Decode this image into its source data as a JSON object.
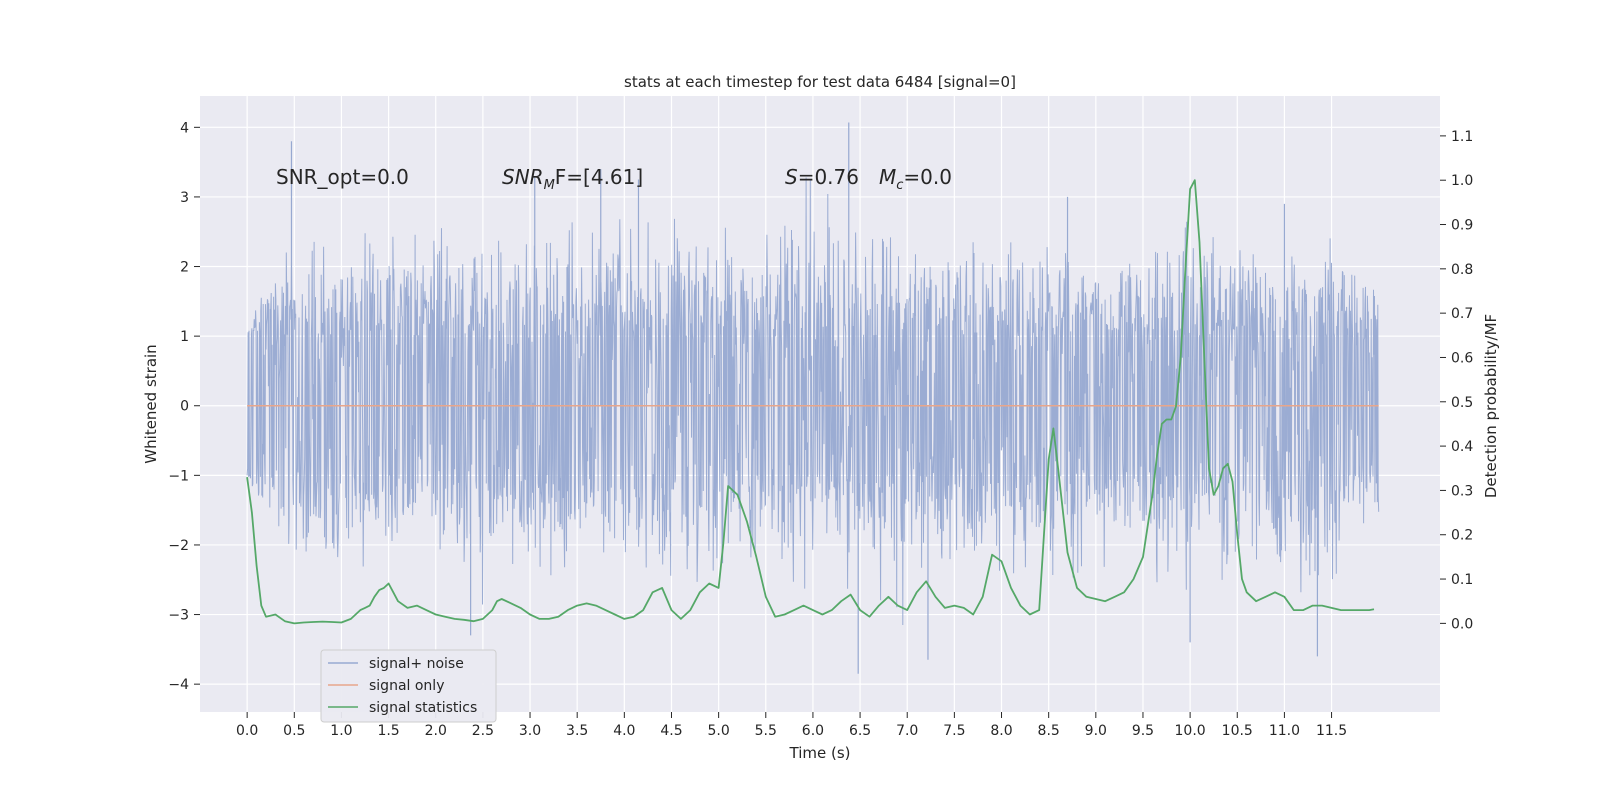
{
  "chart_data": {
    "type": "line",
    "title": "stats at each timestep for test data 6484 [signal=0]",
    "xlabel": "Time (s)",
    "ylabel": "Whitened strain",
    "y2label": "Detection probability/MF",
    "xlim": [
      -0.5,
      12.65
    ],
    "ylim": [
      -4.4,
      4.45
    ],
    "y2lim": [
      -0.2,
      1.19
    ],
    "x_ticks": [
      "0.0",
      "0.5",
      "1.0",
      "1.5",
      "2.0",
      "2.5",
      "3.0",
      "3.5",
      "4.0",
      "4.5",
      "5.0",
      "5.5",
      "6.0",
      "6.5",
      "7.0",
      "7.5",
      "8.0",
      "8.5",
      "9.0",
      "9.5",
      "10.0",
      "10.5",
      "11.0",
      "11.5"
    ],
    "y_ticks": [
      "4",
      "3",
      "2",
      "1",
      "0",
      "−1",
      "−2",
      "−3",
      "−4"
    ],
    "y2_ticks": [
      "1.1",
      "1.0",
      "0.9",
      "0.8",
      "0.7",
      "0.6",
      "0.5",
      "0.4",
      "0.3",
      "0.2",
      "0.1",
      "0.0"
    ],
    "grid": true,
    "legend_position": "lower-left",
    "annotations": {
      "snr_opt": "SNR_opt=0.0",
      "snr_mf_sym": "SNR",
      "snr_mf_sub": "M",
      "snr_mf_rest": "F=[4.61]",
      "s_sym": "S",
      "s_rest": "=0.76",
      "mc_sym": "M",
      "mc_sub": "c",
      "mc_rest": "=0.0"
    },
    "series": [
      {
        "name": "signal+ noise",
        "color": "#97a9d1",
        "axis": "left",
        "x_range": [
          0.0,
          12.0
        ],
        "envelope": {
          "x": [
            0.0,
            0.5,
            1.0,
            1.5,
            2.0,
            2.5,
            3.0,
            3.5,
            4.0,
            4.5,
            5.0,
            5.5,
            6.0,
            6.5,
            7.0,
            7.5,
            8.0,
            8.5,
            9.0,
            9.5,
            10.0,
            10.5,
            11.0,
            11.5,
            12.0
          ],
          "upper": [
            1.1,
            2.6,
            2.5,
            2.6,
            2.8,
            2.5,
            3.2,
            2.7,
            2.9,
            2.8,
            2.7,
            2.6,
            3.5,
            2.8,
            2.6,
            2.7,
            2.5,
            2.6,
            2.4,
            2.5,
            2.9,
            2.5,
            2.4,
            2.6,
            1.8
          ],
          "lower": [
            -1.0,
            -2.4,
            -2.6,
            -2.4,
            -2.8,
            -2.9,
            -2.7,
            -2.6,
            -2.5,
            -2.6,
            -3.0,
            -2.5,
            -2.8,
            -2.9,
            -3.3,
            -2.7,
            -2.6,
            -2.5,
            -2.6,
            -2.5,
            -3.0,
            -2.6,
            -2.6,
            -3.0,
            -1.6
          ],
          "spikes": [
            [
              0.47,
              3.8
            ],
            [
              2.37,
              -3.3
            ],
            [
              3.05,
              3.3
            ],
            [
              3.75,
              3.4
            ],
            [
              6.38,
              4.07
            ],
            [
              6.48,
              -3.85
            ],
            [
              7.22,
              -3.65
            ],
            [
              10.0,
              -3.4
            ],
            [
              11.35,
              -3.6
            ],
            [
              4.15,
              3.25
            ],
            [
              8.7,
              3.0
            ],
            [
              11.0,
              2.9
            ]
          ]
        }
      },
      {
        "name": "signal only",
        "color": "#e8a68b",
        "axis": "left",
        "x": [
          0.0,
          12.0
        ],
        "y": [
          0.0,
          0.0
        ]
      },
      {
        "name": "signal statistics",
        "color": "#55a868",
        "axis": "right",
        "x": [
          0.0,
          0.05,
          0.1,
          0.15,
          0.2,
          0.3,
          0.4,
          0.5,
          0.6,
          0.7,
          0.8,
          0.9,
          1.0,
          1.1,
          1.15,
          1.2,
          1.25,
          1.3,
          1.35,
          1.4,
          1.45,
          1.5,
          1.55,
          1.6,
          1.7,
          1.8,
          1.9,
          2.0,
          2.1,
          2.2,
          2.3,
          2.4,
          2.5,
          2.6,
          2.65,
          2.7,
          2.8,
          2.9,
          3.0,
          3.1,
          3.2,
          3.3,
          3.4,
          3.5,
          3.6,
          3.7,
          3.8,
          3.9,
          4.0,
          4.1,
          4.2,
          4.3,
          4.4,
          4.5,
          4.6,
          4.7,
          4.8,
          4.9,
          5.0,
          5.05,
          5.1,
          5.2,
          5.3,
          5.4,
          5.5,
          5.6,
          5.7,
          5.8,
          5.9,
          6.0,
          6.1,
          6.2,
          6.3,
          6.4,
          6.5,
          6.6,
          6.7,
          6.8,
          6.9,
          7.0,
          7.1,
          7.2,
          7.3,
          7.4,
          7.5,
          7.6,
          7.7,
          7.8,
          7.9,
          8.0,
          8.1,
          8.2,
          8.3,
          8.4,
          8.5,
          8.55,
          8.6,
          8.7,
          8.8,
          8.9,
          9.0,
          9.1,
          9.2,
          9.3,
          9.4,
          9.5,
          9.55,
          9.6,
          9.65,
          9.7,
          9.75,
          9.8,
          9.85,
          9.9,
          9.95,
          10.0,
          10.05,
          10.1,
          10.15,
          10.2,
          10.25,
          10.3,
          10.35,
          10.4,
          10.45,
          10.5,
          10.55,
          10.6,
          10.7,
          10.8,
          10.9,
          11.0,
          11.1,
          11.2,
          11.3,
          11.4,
          11.5,
          11.6,
          11.7,
          11.8,
          11.9,
          11.95
        ],
        "y": [
          0.33,
          0.25,
          0.13,
          0.04,
          0.015,
          0.02,
          0.005,
          0.0,
          0.002,
          0.003,
          0.004,
          0.003,
          0.002,
          0.01,
          0.02,
          0.03,
          0.035,
          0.04,
          0.06,
          0.075,
          0.08,
          0.09,
          0.07,
          0.05,
          0.035,
          0.04,
          0.03,
          0.02,
          0.015,
          0.01,
          0.008,
          0.005,
          0.01,
          0.03,
          0.05,
          0.055,
          0.045,
          0.035,
          0.02,
          0.01,
          0.01,
          0.015,
          0.03,
          0.04,
          0.045,
          0.04,
          0.03,
          0.02,
          0.01,
          0.015,
          0.03,
          0.07,
          0.08,
          0.03,
          0.01,
          0.03,
          0.07,
          0.09,
          0.08,
          0.18,
          0.31,
          0.29,
          0.23,
          0.15,
          0.06,
          0.015,
          0.02,
          0.03,
          0.04,
          0.03,
          0.02,
          0.03,
          0.05,
          0.065,
          0.03,
          0.015,
          0.04,
          0.06,
          0.04,
          0.03,
          0.07,
          0.095,
          0.06,
          0.035,
          0.04,
          0.035,
          0.02,
          0.06,
          0.155,
          0.14,
          0.08,
          0.04,
          0.02,
          0.03,
          0.37,
          0.44,
          0.35,
          0.16,
          0.08,
          0.06,
          0.055,
          0.05,
          0.06,
          0.07,
          0.1,
          0.15,
          0.22,
          0.29,
          0.38,
          0.45,
          0.46,
          0.46,
          0.49,
          0.6,
          0.8,
          0.98,
          1.0,
          0.86,
          0.6,
          0.35,
          0.29,
          0.31,
          0.35,
          0.36,
          0.32,
          0.2,
          0.1,
          0.07,
          0.05,
          0.06,
          0.07,
          0.06,
          0.03,
          0.03,
          0.04,
          0.04,
          0.035,
          0.03,
          0.03,
          0.03,
          0.03,
          0.032
        ]
      }
    ]
  }
}
